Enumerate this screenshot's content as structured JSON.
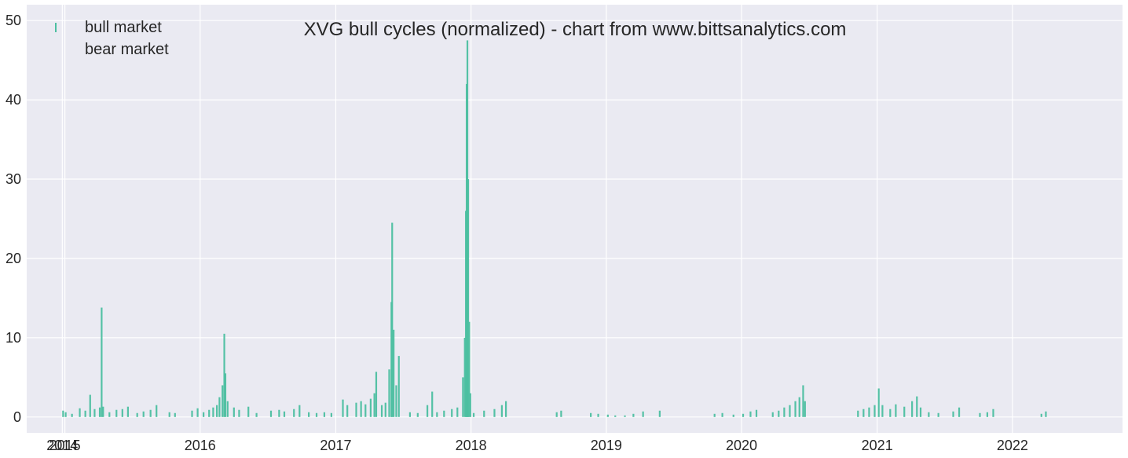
{
  "chart_data": {
    "type": "bar",
    "title": "XVG bull cycles (normalized)  - chart from www.bittsanalytics.com",
    "xlabel": "",
    "ylabel": "",
    "xlim": [
      "2014-09-20",
      "2022-10-25"
    ],
    "ylim": [
      -2,
      52
    ],
    "x_tick_labels": [
      "2014",
      "2015",
      "2016",
      "2017",
      "2018",
      "2019",
      "2020",
      "2021",
      "2022"
    ],
    "x_tick_dates": [
      "2014-12-25",
      "2015-01-01",
      "2016-01-01",
      "2017-01-01",
      "2018-01-01",
      "2019-01-01",
      "2020-01-01",
      "2021-01-01",
      "2022-01-01"
    ],
    "y_ticks": [
      0,
      10,
      20,
      30,
      40,
      50
    ],
    "y_tick_labels": [
      "0",
      "10",
      "20",
      "30",
      "40",
      "50"
    ],
    "grid": true,
    "legend_position": "top-left",
    "series": [
      {
        "name": "bull market",
        "color": "#4cbfa0",
        "points": [
          [
            "2014-12-27",
            0.8
          ],
          [
            "2015-01-03",
            0.6
          ],
          [
            "2015-01-20",
            0.4
          ],
          [
            "2015-02-10",
            1.1
          ],
          [
            "2015-02-25",
            0.8
          ],
          [
            "2015-03-10",
            2.8
          ],
          [
            "2015-03-22",
            1.0
          ],
          [
            "2015-04-05",
            1.2
          ],
          [
            "2015-04-10",
            13.8
          ],
          [
            "2015-04-14",
            1.3
          ],
          [
            "2015-05-01",
            0.6
          ],
          [
            "2015-05-20",
            0.9
          ],
          [
            "2015-06-05",
            1.0
          ],
          [
            "2015-06-20",
            1.3
          ],
          [
            "2015-07-15",
            0.5
          ],
          [
            "2015-08-01",
            0.7
          ],
          [
            "2015-08-20",
            0.9
          ],
          [
            "2015-09-05",
            1.5
          ],
          [
            "2015-10-10",
            0.6
          ],
          [
            "2015-10-25",
            0.5
          ],
          [
            "2015-12-10",
            0.8
          ],
          [
            "2015-12-25",
            1.1
          ],
          [
            "2016-01-10",
            0.6
          ],
          [
            "2016-01-25",
            0.9
          ],
          [
            "2016-02-05",
            1.2
          ],
          [
            "2016-02-15",
            1.5
          ],
          [
            "2016-02-22",
            2.5
          ],
          [
            "2016-03-01",
            4.0
          ],
          [
            "2016-03-06",
            10.5
          ],
          [
            "2016-03-09",
            5.5
          ],
          [
            "2016-03-15",
            2.0
          ],
          [
            "2016-04-01",
            1.2
          ],
          [
            "2016-04-15",
            0.9
          ],
          [
            "2016-05-10",
            1.3
          ],
          [
            "2016-06-01",
            0.5
          ],
          [
            "2016-07-10",
            0.8
          ],
          [
            "2016-08-01",
            0.9
          ],
          [
            "2016-08-15",
            0.7
          ],
          [
            "2016-09-10",
            1.0
          ],
          [
            "2016-09-25",
            1.5
          ],
          [
            "2016-10-20",
            0.6
          ],
          [
            "2016-11-10",
            0.5
          ],
          [
            "2016-12-01",
            0.6
          ],
          [
            "2016-12-20",
            0.5
          ],
          [
            "2017-01-20",
            2.2
          ],
          [
            "2017-02-01",
            1.5
          ],
          [
            "2017-02-25",
            1.8
          ],
          [
            "2017-03-10",
            2.0
          ],
          [
            "2017-03-22",
            1.6
          ],
          [
            "2017-04-05",
            2.3
          ],
          [
            "2017-04-15",
            3.0
          ],
          [
            "2017-04-20",
            5.7
          ],
          [
            "2017-05-05",
            1.5
          ],
          [
            "2017-05-15",
            1.8
          ],
          [
            "2017-05-25",
            6.0
          ],
          [
            "2017-05-31",
            14.5
          ],
          [
            "2017-06-02",
            24.5
          ],
          [
            "2017-06-06",
            11.0
          ],
          [
            "2017-06-13",
            4.0
          ],
          [
            "2017-06-20",
            7.7
          ],
          [
            "2017-07-20",
            0.6
          ],
          [
            "2017-08-10",
            0.5
          ],
          [
            "2017-09-05",
            1.5
          ],
          [
            "2017-09-18",
            3.2
          ],
          [
            "2017-10-01",
            0.6
          ],
          [
            "2017-10-20",
            0.8
          ],
          [
            "2017-11-10",
            1.0
          ],
          [
            "2017-11-25",
            1.2
          ],
          [
            "2017-12-10",
            5.0
          ],
          [
            "2017-12-15",
            10.0
          ],
          [
            "2017-12-18",
            26.0
          ],
          [
            "2017-12-20",
            42.0
          ],
          [
            "2017-12-22",
            47.5
          ],
          [
            "2017-12-24",
            30.0
          ],
          [
            "2017-12-27",
            12.0
          ],
          [
            "2017-12-30",
            3.0
          ],
          [
            "2018-01-08",
            0.5
          ],
          [
            "2018-02-05",
            0.8
          ],
          [
            "2018-03-05",
            1.0
          ],
          [
            "2018-03-25",
            1.5
          ],
          [
            "2018-04-05",
            2.0
          ],
          [
            "2018-08-20",
            0.6
          ],
          [
            "2018-09-01",
            0.8
          ],
          [
            "2018-11-20",
            0.5
          ],
          [
            "2018-12-10",
            0.4
          ],
          [
            "2019-01-05",
            0.3
          ],
          [
            "2019-01-25",
            0.2
          ],
          [
            "2019-02-20",
            0.2
          ],
          [
            "2019-03-15",
            0.4
          ],
          [
            "2019-04-10",
            0.7
          ],
          [
            "2019-05-25",
            0.8
          ],
          [
            "2019-10-20",
            0.4
          ],
          [
            "2019-11-10",
            0.5
          ],
          [
            "2019-12-10",
            0.3
          ],
          [
            "2020-01-05",
            0.4
          ],
          [
            "2020-01-25",
            0.7
          ],
          [
            "2020-02-10",
            0.9
          ],
          [
            "2020-03-25",
            0.6
          ],
          [
            "2020-04-10",
            0.8
          ],
          [
            "2020-04-25",
            1.2
          ],
          [
            "2020-05-10",
            1.5
          ],
          [
            "2020-05-25",
            2.0
          ],
          [
            "2020-06-05",
            2.5
          ],
          [
            "2020-06-15",
            4.0
          ],
          [
            "2020-06-20",
            2.0
          ],
          [
            "2020-11-10",
            0.8
          ],
          [
            "2020-11-25",
            1.0
          ],
          [
            "2020-12-10",
            1.2
          ],
          [
            "2020-12-25",
            1.5
          ],
          [
            "2021-01-05",
            3.6
          ],
          [
            "2021-01-15",
            1.5
          ],
          [
            "2021-02-05",
            1.0
          ],
          [
            "2021-02-20",
            1.6
          ],
          [
            "2021-03-15",
            1.3
          ],
          [
            "2021-04-05",
            2.0
          ],
          [
            "2021-04-18",
            2.6
          ],
          [
            "2021-04-28",
            1.2
          ],
          [
            "2021-05-20",
            0.6
          ],
          [
            "2021-06-15",
            0.5
          ],
          [
            "2021-07-25",
            0.7
          ],
          [
            "2021-08-10",
            1.2
          ],
          [
            "2021-10-05",
            0.5
          ],
          [
            "2021-10-25",
            0.6
          ],
          [
            "2021-11-10",
            1.0
          ],
          [
            "2022-03-20",
            0.4
          ],
          [
            "2022-04-01",
            0.7
          ]
        ]
      },
      {
        "name": "bear market",
        "color": "#eaeaf2",
        "points": []
      }
    ]
  }
}
